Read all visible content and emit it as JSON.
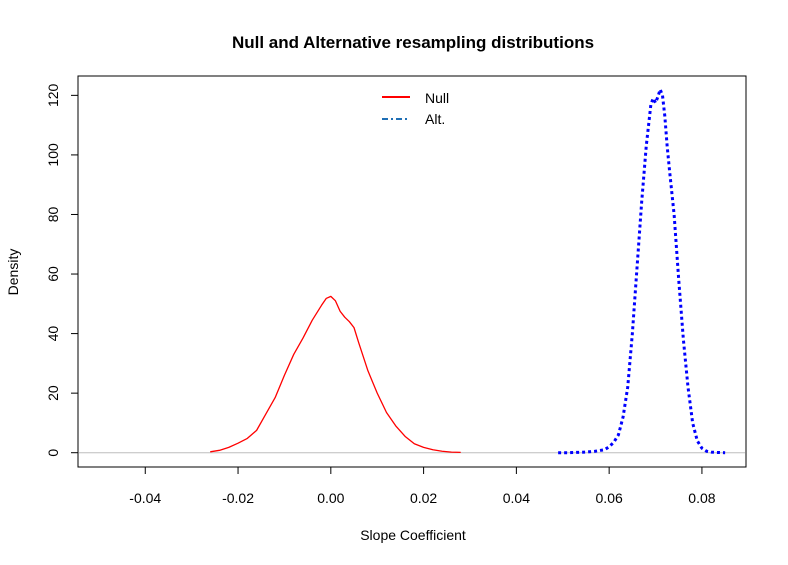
{
  "chart_data": {
    "type": "line",
    "title": "Null and Alternative resampling distributions",
    "xlabel": "Slope Coefficient",
    "ylabel": "Density",
    "xlim": [
      -0.0545,
      0.0895
    ],
    "ylim": [
      -4.8,
      126.5
    ],
    "x_ticks": [
      -0.04,
      -0.02,
      0.0,
      0.02,
      0.04,
      0.06,
      0.08
    ],
    "x_tick_labels": [
      "-0.04",
      "-0.02",
      "0.00",
      "0.02",
      "0.04",
      "0.06",
      "0.08"
    ],
    "y_ticks": [
      0,
      20,
      40,
      60,
      80,
      100,
      120
    ],
    "y_tick_labels": [
      "0",
      "20",
      "40",
      "60",
      "80",
      "100",
      "120"
    ],
    "baseline": 0,
    "baseline_color": "#bebebe",
    "legend": {
      "position": "top-center",
      "entries": [
        "Null",
        "Alt."
      ]
    },
    "series": [
      {
        "name": "Null",
        "color": "#ff0000",
        "line_style": "solid",
        "x": [
          -0.026,
          -0.024,
          -0.022,
          -0.02,
          -0.018,
          -0.016,
          -0.014,
          -0.012,
          -0.01,
          -0.008,
          -0.006,
          -0.004,
          -0.002,
          -0.001,
          0.0,
          0.001,
          0.002,
          0.003,
          0.004,
          0.005,
          0.006,
          0.008,
          0.01,
          0.012,
          0.014,
          0.016,
          0.018,
          0.02,
          0.022,
          0.024,
          0.026,
          0.028
        ],
        "values": [
          0.3,
          0.8,
          1.8,
          3.2,
          4.8,
          7.5,
          13.0,
          18.5,
          26.0,
          33.0,
          38.5,
          44.5,
          49.5,
          51.8,
          52.5,
          51.0,
          47.5,
          45.5,
          44.0,
          42.0,
          37.0,
          27.5,
          20.0,
          13.5,
          9.0,
          5.5,
          3.0,
          1.8,
          1.0,
          0.5,
          0.2,
          0.1
        ]
      },
      {
        "name": "Alt.",
        "color": "#0000ff",
        "line_style": "dotted",
        "x": [
          0.049,
          0.051,
          0.053,
          0.055,
          0.057,
          0.059,
          0.06,
          0.061,
          0.062,
          0.063,
          0.064,
          0.065,
          0.066,
          0.067,
          0.068,
          0.069,
          0.0695,
          0.07,
          0.0705,
          0.071,
          0.0715,
          0.072,
          0.0725,
          0.073,
          0.074,
          0.075,
          0.076,
          0.077,
          0.078,
          0.079,
          0.08,
          0.081,
          0.082,
          0.083,
          0.085
        ],
        "values": [
          0.0,
          0.0,
          0.1,
          0.2,
          0.5,
          1.0,
          2.0,
          3.5,
          6.0,
          12.0,
          22.0,
          40.0,
          62.0,
          84.0,
          103.0,
          117.0,
          119.0,
          117.5,
          119.5,
          122.0,
          120.0,
          113.0,
          103.0,
          95.0,
          80.0,
          58.0,
          38.0,
          22.0,
          10.0,
          4.0,
          1.5,
          0.5,
          0.2,
          0.1,
          0.0
        ]
      }
    ]
  }
}
